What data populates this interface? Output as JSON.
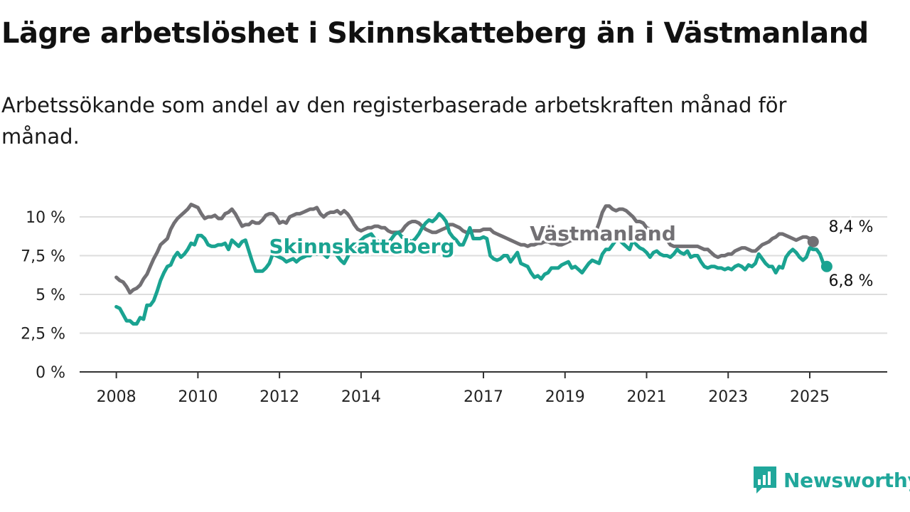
{
  "title": "Lägre arbetslöshet i Skinnskatteberg än i Västmanland",
  "subtitle": "Arbetssökande som andel av den registerbaserade arbetskraften månad för månad.",
  "brand": {
    "name": "Newsworthy",
    "logo_icon": "newsworthy-logo-icon"
  },
  "colors": {
    "skinnskatteberg": "#1aa391",
    "vastmanland": "#727074",
    "grid": "#dddddd",
    "axis": "#333333"
  },
  "chart_data": {
    "type": "line",
    "x_start": 2008.0,
    "x_step": 0.0833333,
    "xlim": [
      2007.1,
      2026.9
    ],
    "ylim": [
      0,
      10
    ],
    "y_ticks": [
      0,
      2.5,
      5,
      7.5,
      10
    ],
    "y_tick_labels": [
      "0 %",
      "2,5 %",
      "5 %",
      "7,5 %",
      "10 %"
    ],
    "x_ticks": [
      2008,
      2010,
      2012,
      2014,
      2017,
      2019,
      2021,
      2023,
      2025
    ],
    "x_tick_labels": [
      "2008",
      "2010",
      "2012",
      "2014",
      "2017",
      "2019",
      "2021",
      "2023",
      "2025"
    ],
    "series": [
      {
        "name": "Västmanland",
        "label": "Västmanland",
        "end_label": "8,4 %",
        "values": [
          6.1,
          5.9,
          5.8,
          5.5,
          5.1,
          5.3,
          5.4,
          5.6,
          6.0,
          6.3,
          6.8,
          7.3,
          7.7,
          8.2,
          8.4,
          8.6,
          9.2,
          9.6,
          9.9,
          10.1,
          10.3,
          10.5,
          10.8,
          10.7,
          10.6,
          10.2,
          9.9,
          10.0,
          10.0,
          10.1,
          9.9,
          9.9,
          10.2,
          10.3,
          10.5,
          10.2,
          9.8,
          9.4,
          9.5,
          9.5,
          9.7,
          9.6,
          9.6,
          9.8,
          10.1,
          10.2,
          10.2,
          10.0,
          9.6,
          9.7,
          9.6,
          10.0,
          10.1,
          10.2,
          10.2,
          10.3,
          10.4,
          10.5,
          10.5,
          10.6,
          10.2,
          10.0,
          10.2,
          10.3,
          10.3,
          10.4,
          10.2,
          10.4,
          10.2,
          9.9,
          9.5,
          9.2,
          9.1,
          9.2,
          9.3,
          9.3,
          9.4,
          9.4,
          9.3,
          9.3,
          9.1,
          9.0,
          9.0,
          9.0,
          9.1,
          9.4,
          9.6,
          9.7,
          9.7,
          9.6,
          9.4,
          9.2,
          9.1,
          9.0,
          9.0,
          9.1,
          9.2,
          9.3,
          9.5,
          9.5,
          9.4,
          9.3,
          9.1,
          9.0,
          9.0,
          9.1,
          9.1,
          9.1,
          9.2,
          9.2,
          9.2,
          9.0,
          8.9,
          8.8,
          8.7,
          8.6,
          8.5,
          8.4,
          8.3,
          8.2,
          8.2,
          8.1,
          8.2,
          8.2,
          8.3,
          8.3,
          8.4,
          8.4,
          8.3,
          8.3,
          8.2,
          8.2,
          8.3,
          8.4,
          8.5,
          8.5,
          8.6,
          8.7,
          8.8,
          8.8,
          8.9,
          9.0,
          9.6,
          10.3,
          10.7,
          10.7,
          10.5,
          10.4,
          10.5,
          10.5,
          10.4,
          10.2,
          10.0,
          9.7,
          9.7,
          9.6,
          9.3,
          9.2,
          9.1,
          9.0,
          9.0,
          8.8,
          8.5,
          8.2,
          8.1,
          8.1,
          8.1,
          8.1,
          8.1,
          8.1,
          8.1,
          8.1,
          8.0,
          7.9,
          7.9,
          7.7,
          7.5,
          7.4,
          7.5,
          7.5,
          7.6,
          7.6,
          7.8,
          7.9,
          8.0,
          8.0,
          7.9,
          7.8,
          7.8,
          8.0,
          8.2,
          8.3,
          8.4,
          8.6,
          8.7,
          8.9,
          8.9,
          8.8,
          8.7,
          8.6,
          8.5,
          8.6,
          8.7,
          8.7,
          8.6,
          8.4
        ]
      },
      {
        "name": "Skinnskatteberg",
        "label": "Skinnskatteberg",
        "end_label": "6,8 %",
        "values": [
          4.2,
          4.1,
          3.7,
          3.3,
          3.3,
          3.1,
          3.1,
          3.5,
          3.4,
          4.3,
          4.3,
          4.6,
          5.2,
          5.9,
          6.4,
          6.8,
          6.9,
          7.4,
          7.7,
          7.4,
          7.6,
          7.9,
          8.3,
          8.2,
          8.8,
          8.8,
          8.6,
          8.2,
          8.1,
          8.1,
          8.2,
          8.2,
          8.3,
          7.9,
          8.5,
          8.3,
          8.1,
          8.4,
          8.5,
          7.8,
          7.1,
          6.5,
          6.5,
          6.5,
          6.7,
          7.0,
          7.6,
          7.5,
          7.4,
          7.3,
          7.1,
          7.2,
          7.3,
          7.1,
          7.3,
          7.4,
          7.5,
          7.5,
          7.8,
          7.6,
          7.7,
          7.6,
          7.4,
          7.8,
          7.8,
          7.5,
          7.2,
          7.0,
          7.4,
          7.9,
          8.1,
          8.3,
          8.5,
          8.7,
          8.8,
          8.9,
          8.6,
          8.4,
          8.2,
          8.0,
          8.3,
          8.6,
          8.9,
          9.0,
          8.7,
          8.6,
          8.5,
          8.4,
          8.6,
          8.9,
          9.3,
          9.6,
          9.8,
          9.7,
          9.9,
          10.2,
          10.0,
          9.7,
          9.0,
          8.7,
          8.5,
          8.2,
          8.2,
          8.7,
          9.3,
          8.6,
          8.6,
          8.6,
          8.7,
          8.6,
          7.5,
          7.3,
          7.2,
          7.3,
          7.5,
          7.5,
          7.1,
          7.4,
          7.7,
          7.0,
          6.9,
          6.8,
          6.4,
          6.1,
          6.2,
          6.0,
          6.3,
          6.4,
          6.7,
          6.7,
          6.7,
          6.9,
          7.0,
          7.1,
          6.7,
          6.8,
          6.6,
          6.4,
          6.7,
          7.0,
          7.2,
          7.1,
          7.0,
          7.6,
          7.9,
          7.9,
          8.2,
          8.5,
          8.5,
          8.3,
          8.1,
          7.9,
          8.5,
          8.2,
          8.0,
          7.9,
          7.7,
          7.4,
          7.7,
          7.8,
          7.6,
          7.5,
          7.5,
          7.4,
          7.6,
          7.9,
          7.7,
          7.6,
          7.8,
          7.4,
          7.5,
          7.5,
          7.1,
          6.8,
          6.7,
          6.8,
          6.8,
          6.7,
          6.7,
          6.6,
          6.7,
          6.6,
          6.8,
          6.9,
          6.8,
          6.6,
          6.9,
          6.8,
          7.0,
          7.6,
          7.3,
          7.0,
          6.8,
          6.8,
          6.4,
          6.8,
          6.7,
          7.4,
          7.7,
          7.9,
          7.7,
          7.4,
          7.2,
          7.4,
          8.0,
          7.9,
          7.9,
          7.6,
          7.0,
          6.8
        ]
      }
    ]
  }
}
